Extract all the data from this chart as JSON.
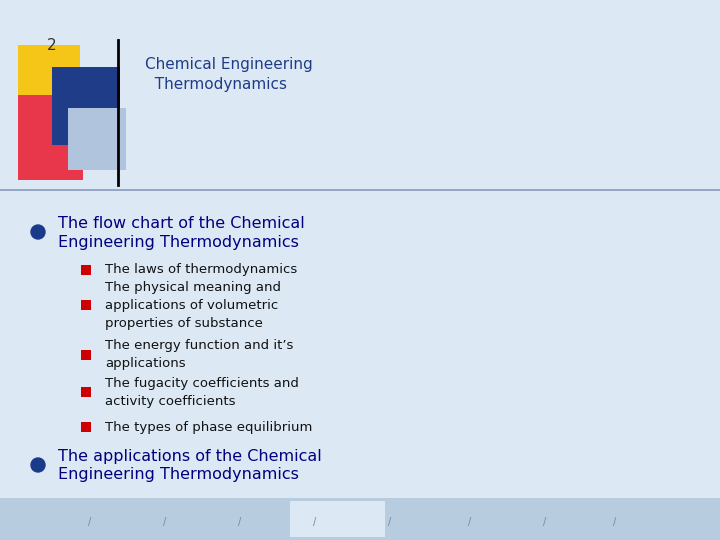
{
  "background_color": "#dce9f5",
  "slide_number": "2",
  "header_title_line1": "Chemical Engineering",
  "header_title_line2": "  Thermodynamics",
  "header_title_color": "#1f3c88",
  "bullet1_text_line1": "The flow chart of the Chemical",
  "bullet1_text_line2": "Engineering Thermodynamics",
  "bullet1_color": "#000080",
  "bullet1_dot_color": "#1a3a8a",
  "sub_bullets": [
    "The laws of thermodynamics",
    "The physical meaning and\napplications of volumetric\nproperties of substance",
    "The energy function and it’s\napplications",
    "The fugacity coefficients and\nactivity coefficients",
    "The types of phase equilibrium"
  ],
  "sub_bullet_color": "#111111",
  "sub_bullet_dot_color": "#cc0000",
  "bullet2_text_line1": "The applications of the Chemical",
  "bullet2_text_line2": "Engineering Thermodynamics",
  "bullet2_color": "#000080",
  "font_family": "DejaVu Sans"
}
